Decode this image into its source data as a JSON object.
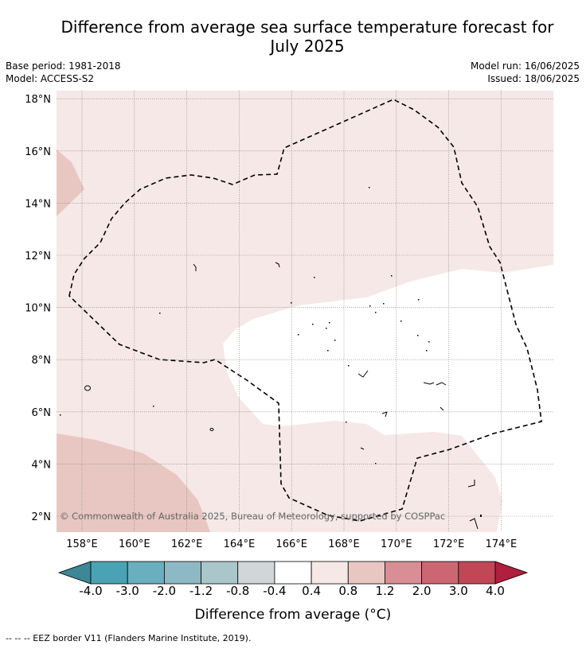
{
  "header": {
    "title_line1": "Difference from average sea surface temperature forecast for",
    "title_line2": "July 2025",
    "base_period": "Base period: 1981-2018",
    "model": "Model: ACCESS-S2",
    "model_run": "Model run: 16/06/2025",
    "issued": "Issued: 18/06/2025"
  },
  "map": {
    "lat_labels": [
      "2°N",
      "4°N",
      "6°N",
      "8°N",
      "10°N",
      "12°N",
      "14°N",
      "16°N",
      "18°N"
    ],
    "lon_labels": [
      "158°E",
      "160°E",
      "162°E",
      "164°E",
      "166°E",
      "168°E",
      "170°E",
      "172°E",
      "174°E"
    ],
    "copyright": "© Commonwealth of Australia 2025, Bureau of Meteorology, supported by COSPPac"
  },
  "colorbar": {
    "labels": [
      "-4.0",
      "-3.0",
      "-2.0",
      "-1.2",
      "-0.8",
      "-0.4",
      "0.4",
      "0.8",
      "1.2",
      "2.0",
      "3.0",
      "4.0"
    ],
    "colors": [
      "#4aa3b5",
      "#6aafbf",
      "#8cb9c4",
      "#a9c7cb",
      "#d1d7d9",
      "#ffffff",
      "#f5e8e7",
      "#e8c7c3",
      "#d98e96",
      "#cd6673",
      "#c14757"
    ],
    "low_color": "#3e8796",
    "high_color": "#b01f3d",
    "title": "Difference from average (°C)"
  },
  "footer": {
    "legend_text": "--  --  -- EEZ border V11 (Flanders Marine Institute, 2019)."
  }
}
